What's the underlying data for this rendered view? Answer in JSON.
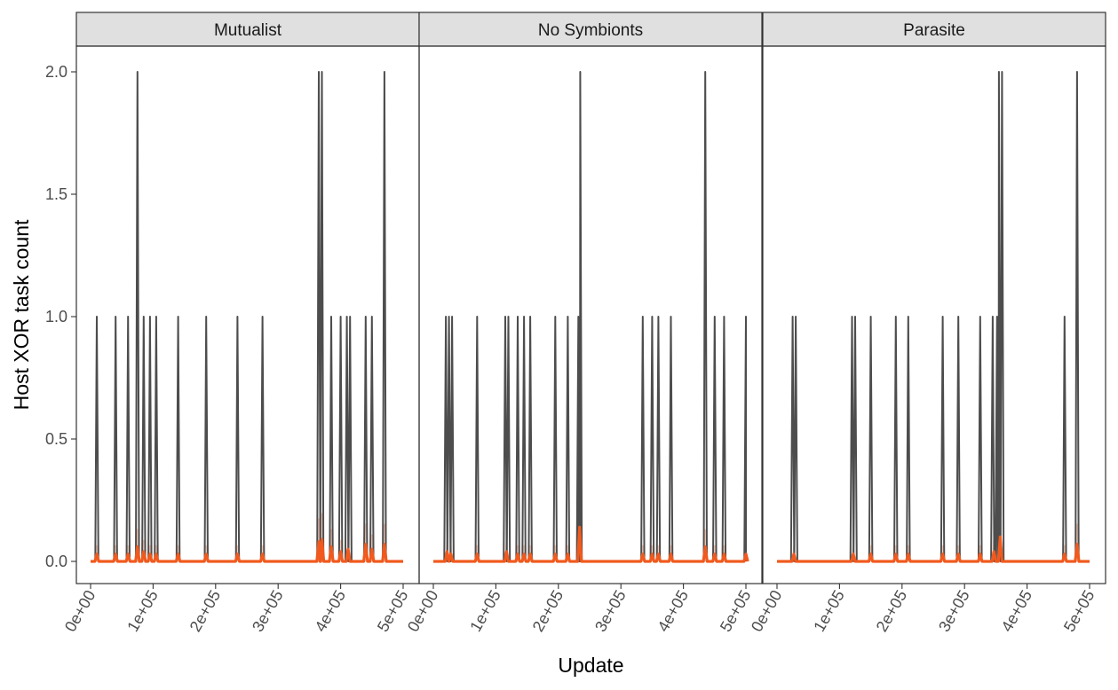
{
  "chart_data": {
    "type": "line",
    "ylabel": "Host XOR task count",
    "xlabel": "Update",
    "xlim": [
      0,
      500000
    ],
    "ylim": [
      0,
      2.0
    ],
    "y_ticks": [
      {
        "value": 0.0,
        "label": "0.0"
      },
      {
        "value": 0.5,
        "label": "0.5"
      },
      {
        "value": 1.0,
        "label": "1.0"
      },
      {
        "value": 1.5,
        "label": "1.5"
      },
      {
        "value": 2.0,
        "label": "2.0"
      }
    ],
    "x_ticks": [
      {
        "value": 0,
        "label": "0e+00"
      },
      {
        "value": 100000,
        "label": "1e+05"
      },
      {
        "value": 200000,
        "label": "2e+05"
      },
      {
        "value": 300000,
        "label": "3e+05"
      },
      {
        "value": 400000,
        "label": "4e+05"
      },
      {
        "value": 500000,
        "label": "5e+05"
      }
    ],
    "grid": false,
    "colors": {
      "raw": "#4d4d4d",
      "mean": "#f05a1e",
      "ribbon": "#f6a07e",
      "strip": "#e0e0e0"
    },
    "panels": [
      {
        "title": "Mutualist",
        "peaks": [
          [
            10000,
            1
          ],
          [
            40000,
            1
          ],
          [
            60000,
            1
          ],
          [
            75000,
            2
          ],
          [
            85000,
            1
          ],
          [
            95000,
            1
          ],
          [
            105000,
            1
          ],
          [
            140000,
            1
          ],
          [
            185000,
            1
          ],
          [
            235000,
            1
          ],
          [
            275000,
            1
          ],
          [
            365000,
            2
          ],
          [
            370000,
            2
          ],
          [
            385000,
            1
          ],
          [
            400000,
            1
          ],
          [
            410000,
            1
          ],
          [
            415000,
            1
          ],
          [
            440000,
            1
          ],
          [
            450000,
            1
          ],
          [
            470000,
            2
          ]
        ],
        "mean_bumps": [
          [
            10000,
            0.03
          ],
          [
            40000,
            0.03
          ],
          [
            60000,
            0.03
          ],
          [
            75000,
            0.06
          ],
          [
            85000,
            0.04
          ],
          [
            95000,
            0.03
          ],
          [
            105000,
            0.03
          ],
          [
            140000,
            0.03
          ],
          [
            185000,
            0.03
          ],
          [
            235000,
            0.03
          ],
          [
            275000,
            0.03
          ],
          [
            365000,
            0.08
          ],
          [
            370000,
            0.09
          ],
          [
            385000,
            0.06
          ],
          [
            400000,
            0.04
          ],
          [
            412000,
            0.05
          ],
          [
            440000,
            0.07
          ],
          [
            450000,
            0.05
          ],
          [
            470000,
            0.07
          ]
        ]
      },
      {
        "title": "No Symbionts",
        "peaks": [
          [
            20000,
            1
          ],
          [
            25000,
            1
          ],
          [
            30000,
            1
          ],
          [
            70000,
            1
          ],
          [
            115000,
            1
          ],
          [
            120000,
            1
          ],
          [
            135000,
            1
          ],
          [
            145000,
            1
          ],
          [
            155000,
            1
          ],
          [
            195000,
            1
          ],
          [
            215000,
            1
          ],
          [
            232000,
            1
          ],
          [
            235000,
            2
          ],
          [
            335000,
            1
          ],
          [
            350000,
            1
          ],
          [
            360000,
            1
          ],
          [
            380000,
            1
          ],
          [
            435000,
            2
          ],
          [
            450000,
            1
          ],
          [
            465000,
            1
          ],
          [
            500000,
            1
          ]
        ],
        "mean_bumps": [
          [
            22000,
            0.04
          ],
          [
            28000,
            0.03
          ],
          [
            70000,
            0.03
          ],
          [
            117000,
            0.04
          ],
          [
            135000,
            0.03
          ],
          [
            145000,
            0.03
          ],
          [
            155000,
            0.03
          ],
          [
            195000,
            0.03
          ],
          [
            215000,
            0.03
          ],
          [
            234000,
            0.14
          ],
          [
            335000,
            0.03
          ],
          [
            350000,
            0.03
          ],
          [
            360000,
            0.03
          ],
          [
            380000,
            0.03
          ],
          [
            435000,
            0.06
          ],
          [
            450000,
            0.03
          ],
          [
            465000,
            0.03
          ],
          [
            500000,
            0.03
          ]
        ]
      },
      {
        "title": "Parasite",
        "peaks": [
          [
            25000,
            1
          ],
          [
            30000,
            1
          ],
          [
            120000,
            1
          ],
          [
            125000,
            1
          ],
          [
            150000,
            1
          ],
          [
            190000,
            1
          ],
          [
            210000,
            1
          ],
          [
            265000,
            1
          ],
          [
            290000,
            1
          ],
          [
            325000,
            1
          ],
          [
            345000,
            1
          ],
          [
            352000,
            1
          ],
          [
            355000,
            2
          ],
          [
            360000,
            2
          ],
          [
            460000,
            1
          ],
          [
            480000,
            2
          ]
        ],
        "mean_bumps": [
          [
            27000,
            0.03
          ],
          [
            122000,
            0.03
          ],
          [
            150000,
            0.03
          ],
          [
            190000,
            0.03
          ],
          [
            210000,
            0.03
          ],
          [
            265000,
            0.03
          ],
          [
            290000,
            0.03
          ],
          [
            325000,
            0.03
          ],
          [
            347000,
            0.04
          ],
          [
            357000,
            0.1
          ],
          [
            460000,
            0.03
          ],
          [
            480000,
            0.07
          ]
        ]
      }
    ]
  }
}
